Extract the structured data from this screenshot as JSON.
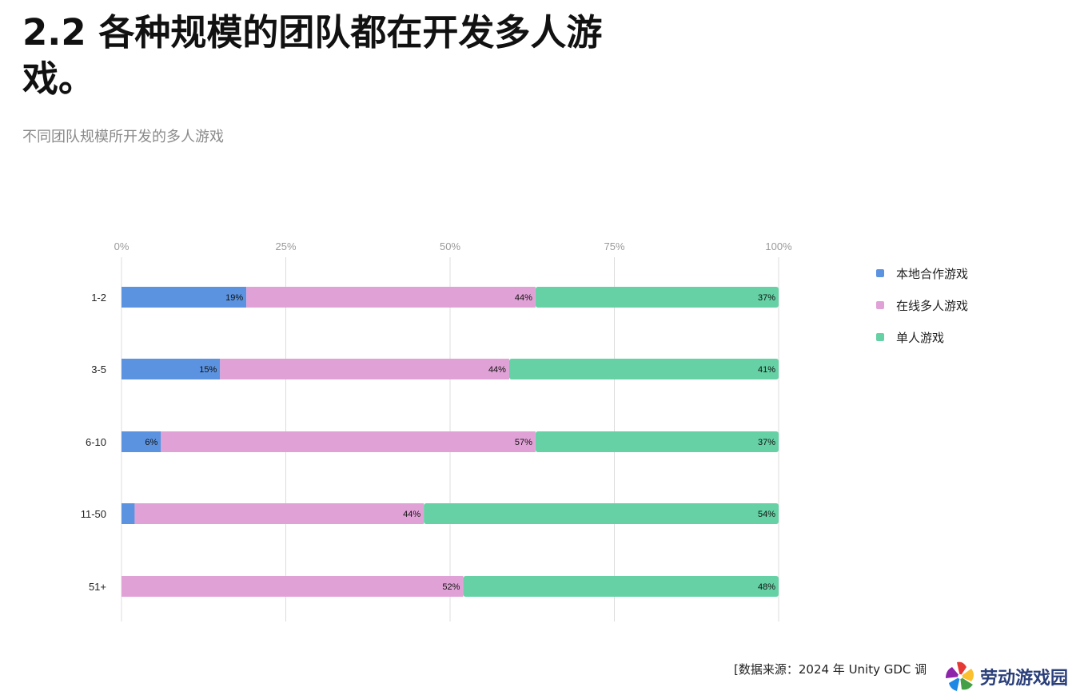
{
  "page": {
    "title": "2.2 各种规模的团队都在开发多人游戏。",
    "subtitle": "不同团队规模所开发的多人游戏",
    "source": "[数据来源：2024 年 Unity GDC 调",
    "watermark": "劳动游戏园"
  },
  "chart_data": {
    "type": "bar",
    "orientation": "horizontal",
    "stacked": true,
    "normalized_percent": true,
    "categories": [
      "1-2",
      "3-5",
      "6-10",
      "11-50",
      "51+"
    ],
    "x_ticks": [
      "0%",
      "25%",
      "50%",
      "75%",
      "100%"
    ],
    "xlim": [
      0,
      100
    ],
    "grid": true,
    "legend_position": "right",
    "series": [
      {
        "name": "本地合作游戏",
        "color": "#5B93E0",
        "values": [
          19,
          15,
          6,
          2,
          0
        ],
        "labels": [
          "19%",
          "15%",
          "6%",
          "2%",
          "0%"
        ]
      },
      {
        "name": "在线多人游戏",
        "color": "#E0A2D6",
        "values": [
          44,
          44,
          57,
          44,
          52
        ],
        "labels": [
          "44%",
          "44%",
          "57%",
          "44%",
          "52%"
        ]
      },
      {
        "name": "单人游戏",
        "color": "#66D1A5",
        "values": [
          37,
          41,
          37,
          54,
          48
        ],
        "labels": [
          "37%",
          "41%",
          "37%",
          "54%",
          "48%"
        ]
      }
    ]
  }
}
